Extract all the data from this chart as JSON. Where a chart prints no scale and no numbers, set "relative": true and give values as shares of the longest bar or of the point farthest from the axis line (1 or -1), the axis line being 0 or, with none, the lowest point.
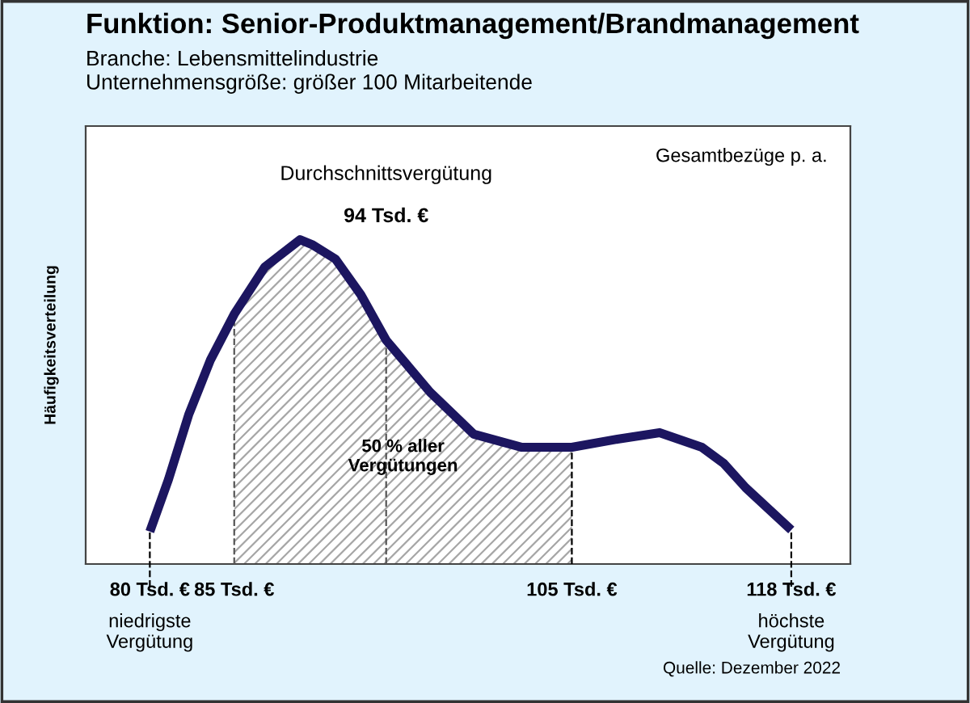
{
  "chart_data": {
    "type": "line",
    "title": "Funktion: Senior-Produktmanagement/Brandmanagement",
    "subtitle": "Branche: Lebensmittelindustrie\nUnternehmensgröße: größer 100 Mitarbeitende",
    "ylabel": "Häufigkeitsverteilung",
    "relative": true,
    "x": [
      80,
      81.1,
      82.3,
      83.6,
      85,
      86.8,
      88.9,
      89.6,
      91,
      92.5,
      94,
      96.6,
      99.2,
      102,
      105,
      107.7,
      110.2,
      112.7,
      114,
      115.3,
      118
    ],
    "series": [
      {
        "color": "#1c1660",
        "values": [
          0.1,
          0.26,
          0.46,
          0.63,
          0.77,
          0.915,
          1.0,
          0.985,
          0.94,
          0.83,
          0.69,
          0.53,
          0.4,
          0.36,
          0.36,
          0.385,
          0.405,
          0.36,
          0.31,
          0.235,
          0.105
        ]
      }
    ],
    "xlim": [
      76.2,
      121.5
    ],
    "xticks": [
      {
        "value": 80,
        "label": "80 Tsd. €"
      },
      {
        "value": 85,
        "label": "85 Tsd. €"
      },
      {
        "value": 105,
        "label": "105 Tsd. €"
      },
      {
        "value": 118,
        "label": "118 Tsd. €"
      }
    ],
    "tick_labels": "x",
    "ref_lines": [
      {
        "axis": "x",
        "value": 80,
        "label": null,
        "line_style": "dashed",
        "color": "#000000"
      },
      {
        "axis": "x",
        "value": 85,
        "label": null,
        "line_style": "dashed",
        "color": "#555555"
      },
      {
        "axis": "x",
        "value": 94,
        "label": null,
        "line_style": "dashed",
        "color": "#555555"
      },
      {
        "axis": "x",
        "value": 105,
        "label": null,
        "line_style": "dashed",
        "color": "#000000"
      },
      {
        "axis": "x",
        "value": 118,
        "label": null,
        "line_style": "dashed",
        "color": "#000000"
      }
    ],
    "bands": [
      {
        "axis": "x",
        "from": 85,
        "to": 105,
        "label": "50 % aller\nVergütungen",
        "color": "#a6a6a6"
      }
    ],
    "annotations": [
      "Gesamtbezüge p. a.",
      "Quelle: Dezember 2022",
      "Durchschnittsvergütung",
      "94 Tsd. €",
      {
        "text": "niedrigste\nVergütung",
        "x": 80,
        "y": 0
      },
      {
        "text": "höchste\nVergütung",
        "x": 118,
        "y": 0
      }
    ],
    "grid": false,
    "legend": false,
    "marker": "none",
    "line_style": "solid"
  }
}
